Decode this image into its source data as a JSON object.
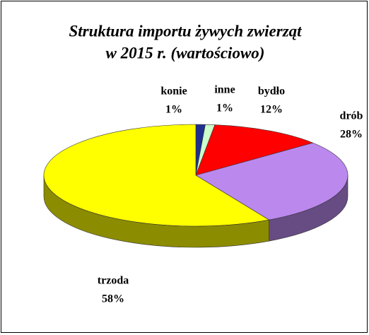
{
  "chart_data": {
    "type": "pie3d",
    "title": [
      "Struktura importu żywych zwierząt",
      "w 2015 r. (wartościowo)"
    ],
    "categories": [
      "konie",
      "inne",
      "bydło",
      "drób",
      "trzoda"
    ],
    "values": [
      1,
      1,
      12,
      28,
      58
    ],
    "value_labels": [
      "1%",
      "1%",
      "12%",
      "28%",
      "58%"
    ],
    "colors": [
      "#1f2f8f",
      "#ccffcc",
      "#ff0000",
      "#bb88ee",
      "#ffff00"
    ]
  }
}
